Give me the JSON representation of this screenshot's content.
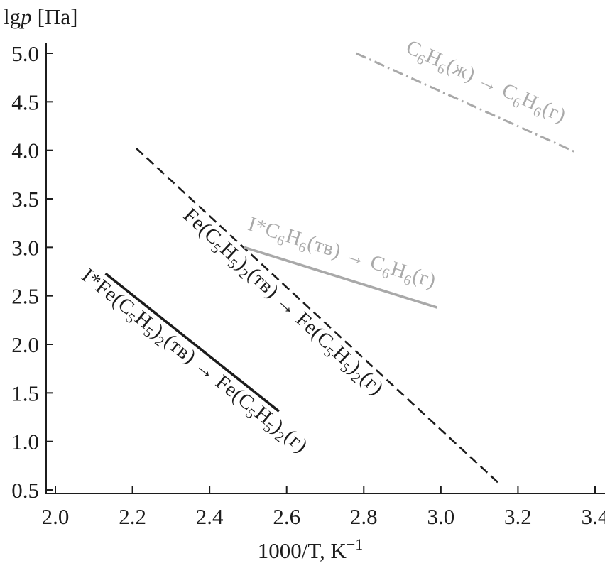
{
  "figure": {
    "ylabel": {
      "lg": "lg",
      "p": "p",
      "unit": "[Па]"
    },
    "xlabel": {
      "main": "1000/T, K",
      "sup": "−1"
    }
  },
  "chart_data": {
    "type": "line",
    "title": "",
    "xlabel": "1000/T, K⁻¹",
    "ylabel": "lg p [Па]",
    "xlim": [
      1.98,
      3.43
    ],
    "ylim": [
      0.46,
      5.1
    ],
    "xticks": [
      2.0,
      2.2,
      2.4,
      2.6,
      2.8,
      3.0,
      3.2,
      3.4
    ],
    "yticks": [
      0.5,
      1.0,
      1.5,
      2.0,
      2.5,
      3.0,
      3.5,
      4.0,
      4.5,
      5.0
    ],
    "grid": false,
    "legend_position": "labels-along-lines",
    "axis_color": "#1c1c1c",
    "colors": {
      "black": "#1c1c1c",
      "gray": "#a9a9a9"
    },
    "series": [
      {
        "name": "benzene-liquid-to-gas",
        "label_text": "C6H6(ж) → C6H6(г)",
        "style": "dashdot",
        "color": "#a9a9a9",
        "width": 3,
        "x": [
          2.78,
          3.35
        ],
        "y": [
          5.0,
          3.98
        ],
        "label_layout": {
          "t": 0.54,
          "offset": 30
        },
        "label_segments": [
          {
            "t": "C"
          },
          {
            "t": "6",
            "sub": true
          },
          {
            "t": "H"
          },
          {
            "t": "6",
            "sub": true
          },
          {
            "t": "(ж) → C"
          },
          {
            "t": "6",
            "sub": true
          },
          {
            "t": "H"
          },
          {
            "t": "6",
            "sub": true
          },
          {
            "t": "(г)"
          }
        ]
      },
      {
        "name": "ferrocene-solid-to-gas",
        "label_text": "Fe(C5H5)2(тв) → Fe(C5H5)2(г)",
        "style": "dashed",
        "color": "#1c1c1c",
        "width": 2.6,
        "x": [
          2.21,
          3.15
        ],
        "y": [
          4.02,
          0.57
        ],
        "label_layout": {
          "t": 0.43,
          "offset": -27
        },
        "label_segments": [
          {
            "t": "Fe(C"
          },
          {
            "t": "5",
            "sub": true
          },
          {
            "t": "H"
          },
          {
            "t": "5",
            "sub": true
          },
          {
            "t": ")"
          },
          {
            "t": "2",
            "sub": true
          },
          {
            "t": "(тв) → Fe(C"
          },
          {
            "t": "5",
            "sub": true
          },
          {
            "t": "H"
          },
          {
            "t": "5",
            "sub": true
          },
          {
            "t": ")"
          },
          {
            "t": "2",
            "sub": true
          },
          {
            "t": "(г)"
          }
        ]
      },
      {
        "name": "iodine-benzene-clathrate-to-gas",
        "label_text": "I*C6H6(тв) → C6H6(г)",
        "style": "solid",
        "color": "#a9a9a9",
        "width": 3.6,
        "x": [
          2.49,
          2.99
        ],
        "y": [
          3.0,
          2.38
        ],
        "label_layout": {
          "t": 0.47,
          "offset": 25
        },
        "label_segments": [
          {
            "t": "I*C"
          },
          {
            "t": "6",
            "sub": true
          },
          {
            "t": "H"
          },
          {
            "t": "6",
            "sub": true
          },
          {
            "t": "(тв) → C"
          },
          {
            "t": "6",
            "sub": true
          },
          {
            "t": "H"
          },
          {
            "t": "6",
            "sub": true
          },
          {
            "t": "(г)"
          }
        ]
      },
      {
        "name": "iodine-ferrocene-clathrate-to-gas",
        "label_text": "I*Fe(C5H5)2(тв) → Fe(C5H5)2(г)",
        "style": "solid",
        "color": "#1c1c1c",
        "width": 3.6,
        "x": [
          2.13,
          2.58
        ],
        "y": [
          2.73,
          1.31
        ],
        "label_layout": {
          "t": 0.56,
          "offset": -27
        },
        "label_segments": [
          {
            "t": "I*Fe(C"
          },
          {
            "t": "5",
            "sub": true
          },
          {
            "t": "H"
          },
          {
            "t": "5",
            "sub": true
          },
          {
            "t": ")"
          },
          {
            "t": "2",
            "sub": true
          },
          {
            "t": "(тв) → Fe(C"
          },
          {
            "t": "5",
            "sub": true
          },
          {
            "t": "H"
          },
          {
            "t": "5",
            "sub": true
          },
          {
            "t": ")"
          },
          {
            "t": "2",
            "sub": true
          },
          {
            "t": "(г)"
          }
        ]
      }
    ]
  }
}
